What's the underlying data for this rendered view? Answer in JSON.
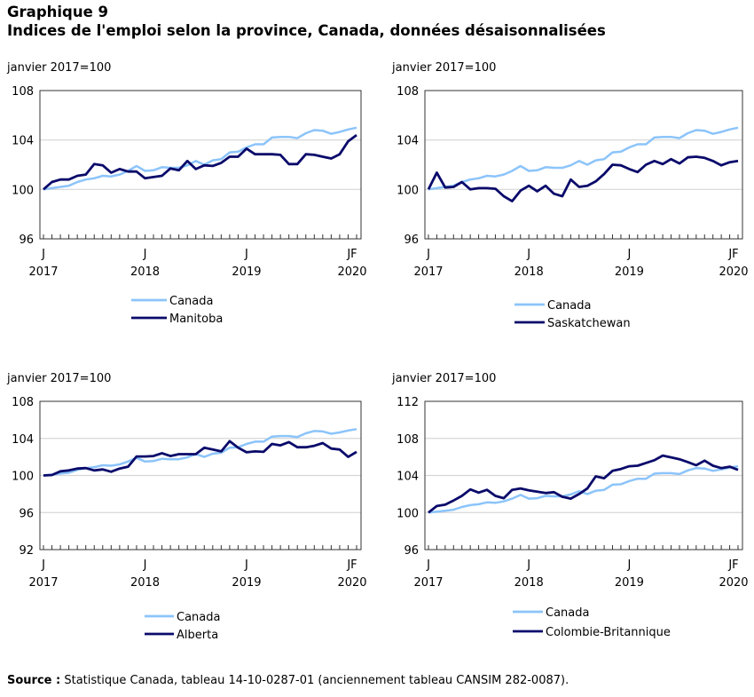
{
  "title_line1": "Graphique 9",
  "title_line2": "Indices de l'emploi selon la province, Canada, données désaisonnalisées",
  "source_label": "Source :",
  "source_text": "Statistique Canada, tableau 14-10-0287-01 (anciennement tableau CANSIM 282-0087).",
  "colors": {
    "canada": "#8CC4FA",
    "province": "#0A0A6B",
    "grid": "#D6D6D6",
    "axis": "#333333"
  },
  "chart_data": [
    {
      "type": "line",
      "ylabel": "janvier 2017=100",
      "ylim": [
        96,
        108
      ],
      "yticks": [
        96,
        100,
        104,
        108
      ],
      "grid": true,
      "legend_position": "bottom",
      "x_tick_labels": [
        {
          "month": "J",
          "year": "2017"
        },
        {
          "month": "J",
          "year": "2018"
        },
        {
          "month": "J",
          "year": "2019"
        },
        {
          "month": "JF",
          "year": "2020"
        }
      ],
      "series": [
        {
          "name": "Canada",
          "values": [
            100.0,
            100.1,
            100.2,
            100.3,
            100.6,
            100.8,
            100.9,
            101.1,
            101.05,
            101.2,
            101.5,
            101.9,
            101.5,
            101.55,
            101.8,
            101.75,
            101.75,
            101.95,
            102.3,
            102.0,
            102.35,
            102.45,
            103.0,
            103.05,
            103.4,
            103.65,
            103.65,
            104.2,
            104.25,
            104.25,
            104.15,
            104.55,
            104.8,
            104.75,
            104.5,
            104.65,
            104.85,
            105.0
          ]
        },
        {
          "name": "Manitoba",
          "values": [
            100.0,
            100.6,
            100.8,
            100.8,
            101.1,
            101.2,
            102.05,
            101.95,
            101.35,
            101.65,
            101.45,
            101.45,
            100.9,
            101.0,
            101.1,
            101.7,
            101.55,
            102.3,
            101.65,
            101.95,
            101.9,
            102.15,
            102.65,
            102.65,
            103.3,
            102.85,
            102.85,
            102.85,
            102.8,
            102.05,
            102.05,
            102.85,
            102.8,
            102.65,
            102.5,
            102.85,
            103.9,
            104.4
          ]
        }
      ]
    },
    {
      "type": "line",
      "ylabel": "janvier 2017=100",
      "ylim": [
        96,
        108
      ],
      "yticks": [
        96,
        100,
        104,
        108
      ],
      "grid": true,
      "legend_position": "bottom",
      "x_tick_labels": [
        {
          "month": "J",
          "year": "2017"
        },
        {
          "month": "J",
          "year": "2018"
        },
        {
          "month": "J",
          "year": "2019"
        },
        {
          "month": "JF",
          "year": "2020"
        }
      ],
      "series": [
        {
          "name": "Canada",
          "values": [
            100.0,
            100.1,
            100.2,
            100.3,
            100.6,
            100.8,
            100.9,
            101.1,
            101.05,
            101.2,
            101.5,
            101.9,
            101.5,
            101.55,
            101.8,
            101.75,
            101.75,
            101.95,
            102.3,
            102.0,
            102.35,
            102.45,
            103.0,
            103.05,
            103.4,
            103.65,
            103.65,
            104.2,
            104.25,
            104.25,
            104.15,
            104.55,
            104.8,
            104.75,
            104.5,
            104.65,
            104.85,
            105.0
          ]
        },
        {
          "name": "Saskatchewan",
          "values": [
            100.0,
            101.35,
            100.15,
            100.2,
            100.6,
            100.0,
            100.1,
            100.1,
            100.05,
            99.45,
            99.05,
            99.9,
            100.3,
            99.85,
            100.3,
            99.65,
            99.45,
            100.8,
            100.2,
            100.3,
            100.65,
            101.25,
            102.0,
            101.95,
            101.65,
            101.4,
            102.0,
            102.3,
            102.05,
            102.45,
            102.1,
            102.6,
            102.65,
            102.55,
            102.3,
            101.95,
            102.2,
            102.3
          ]
        }
      ]
    },
    {
      "type": "line",
      "ylabel": "janvier 2017=100",
      "ylim": [
        92,
        108
      ],
      "yticks": [
        92,
        96,
        100,
        104,
        108
      ],
      "grid": true,
      "legend_position": "bottom",
      "x_tick_labels": [
        {
          "month": "J",
          "year": "2017"
        },
        {
          "month": "J",
          "year": "2018"
        },
        {
          "month": "J",
          "year": "2019"
        },
        {
          "month": "JF",
          "year": "2020"
        }
      ],
      "series": [
        {
          "name": "Canada",
          "values": [
            100.0,
            100.1,
            100.2,
            100.3,
            100.6,
            100.8,
            100.9,
            101.1,
            101.05,
            101.2,
            101.5,
            101.9,
            101.5,
            101.55,
            101.8,
            101.75,
            101.75,
            101.95,
            102.3,
            102.0,
            102.35,
            102.45,
            103.0,
            103.05,
            103.4,
            103.65,
            103.65,
            104.2,
            104.25,
            104.25,
            104.15,
            104.55,
            104.8,
            104.75,
            104.5,
            104.65,
            104.85,
            105.0
          ]
        },
        {
          "name": "Alberta",
          "values": [
            100.0,
            100.05,
            100.45,
            100.55,
            100.75,
            100.8,
            100.55,
            100.65,
            100.4,
            100.75,
            100.95,
            102.05,
            102.05,
            102.1,
            102.4,
            102.1,
            102.3,
            102.3,
            102.3,
            103.0,
            102.8,
            102.6,
            103.7,
            103.0,
            102.5,
            102.6,
            102.55,
            103.4,
            103.25,
            103.6,
            103.05,
            103.05,
            103.2,
            103.5,
            102.9,
            102.8,
            102.0,
            102.55
          ]
        }
      ]
    },
    {
      "type": "line",
      "ylabel": "janvier 2017=100",
      "ylim": [
        96,
        112
      ],
      "yticks": [
        96,
        100,
        104,
        108,
        112
      ],
      "grid": true,
      "legend_position": "bottom",
      "x_tick_labels": [
        {
          "month": "J",
          "year": "2017"
        },
        {
          "month": "J",
          "year": "2018"
        },
        {
          "month": "J",
          "year": "2019"
        },
        {
          "month": "JF",
          "year": "2020"
        }
      ],
      "series": [
        {
          "name": "Canada",
          "values": [
            100.0,
            100.1,
            100.2,
            100.3,
            100.6,
            100.8,
            100.9,
            101.1,
            101.05,
            101.2,
            101.5,
            101.9,
            101.5,
            101.55,
            101.8,
            101.75,
            101.75,
            101.95,
            102.3,
            102.0,
            102.35,
            102.45,
            103.0,
            103.05,
            103.4,
            103.65,
            103.65,
            104.2,
            104.25,
            104.25,
            104.15,
            104.55,
            104.8,
            104.75,
            104.5,
            104.65,
            104.85,
            105.0
          ]
        },
        {
          "name": "Colombie-Britannique",
          "values": [
            100.0,
            100.7,
            100.85,
            101.3,
            101.8,
            102.5,
            102.15,
            102.45,
            101.8,
            101.55,
            102.45,
            102.6,
            102.4,
            102.25,
            102.1,
            102.2,
            101.7,
            101.5,
            102.0,
            102.6,
            103.9,
            103.7,
            104.5,
            104.7,
            105.0,
            105.05,
            105.35,
            105.65,
            106.15,
            105.95,
            105.75,
            105.45,
            105.1,
            105.6,
            105.05,
            104.8,
            104.95,
            104.6
          ]
        }
      ]
    }
  ]
}
